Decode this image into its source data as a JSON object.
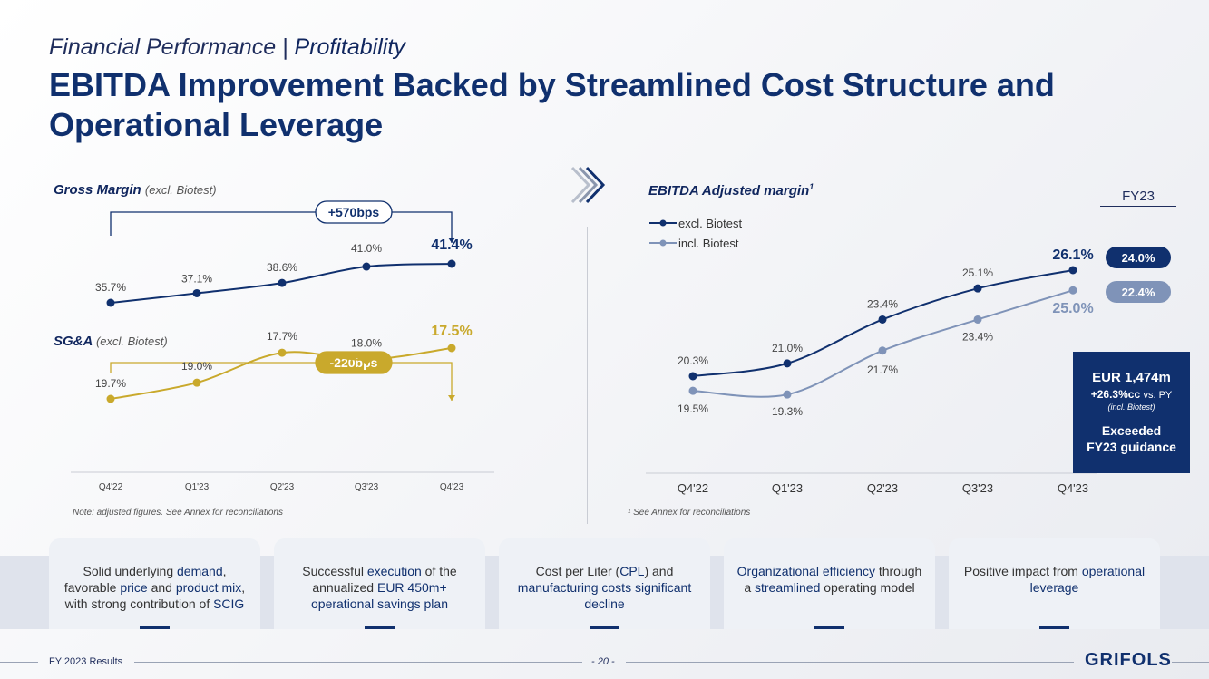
{
  "header": {
    "subtitle_prefix": "Financial Performance |",
    "subtitle_emph": "Profitability",
    "title": "EBITDA Improvement Backed by Streamlined Cost Structure and Operational Leverage"
  },
  "left_panel": {
    "gm_title": "Gross Margin",
    "gm_title_note": "(excl. Biotest)",
    "gm_change": "+570bps",
    "sga_title": "SG&A",
    "sga_title_note": "(excl. Biotest)",
    "sga_change": "-220bps",
    "note": "Note: adjusted figures. See Annex for reconciliations"
  },
  "right_panel": {
    "title": "EBITDA Adjusted margin",
    "title_sup": "1",
    "fy23_label": "FY23",
    "fy23_excl": "24.0%",
    "fy23_incl": "22.4%",
    "note": "¹ See Annex for reconciliations",
    "box": {
      "line1": "EUR 1,474m",
      "line2": "+26.3%cc",
      "line2_suffix": "vs. PY",
      "line3": "(incl. Biotest)",
      "line4a": "Exceeded",
      "line4b": "FY23 guidance"
    }
  },
  "chart_data": [
    {
      "type": "line",
      "title": "Gross Margin",
      "categories": [
        "Q4'22",
        "Q1'23",
        "Q2'23",
        "Q3'23",
        "Q4'23"
      ],
      "series": [
        {
          "name": "",
          "values": [
            35.7,
            37.1,
            38.6,
            41.0,
            41.4
          ],
          "labels": [
            "35.7%",
            "37.1%",
            "38.6%",
            "41.0%",
            "41.4%"
          ]
        }
      ],
      "annotation": "+570bps",
      "color": "#10306e"
    },
    {
      "type": "line",
      "title": "SG&A",
      "categories": [
        "Q4'22",
        "Q1'23",
        "Q2'23",
        "Q3'23",
        "Q4'23"
      ],
      "series": [
        {
          "name": "",
          "values": [
            19.7,
            19.0,
            17.7,
            18.0,
            17.5
          ],
          "labels": [
            "19.7%",
            "19.0%",
            "17.7%",
            "18.0%",
            "17.5%"
          ]
        }
      ],
      "annotation": "-220bps",
      "color": "#c9a92c"
    },
    {
      "type": "line",
      "title": "EBITDA Adjusted margin",
      "categories": [
        "Q4'22",
        "Q1'23",
        "Q2'23",
        "Q3'23",
        "Q4'23"
      ],
      "series": [
        {
          "name": "excl. Biotest",
          "values": [
            20.3,
            21.0,
            23.4,
            25.1,
            26.1
          ],
          "labels": [
            "20.3%",
            "21.0%",
            "23.4%",
            "25.1%",
            "26.1%"
          ],
          "color": "#10306e"
        },
        {
          "name": "incl. Biotest",
          "values": [
            19.5,
            19.3,
            21.7,
            23.4,
            25.0
          ],
          "labels": [
            "19.5%",
            "19.3%",
            "21.7%",
            "23.4%",
            "25.0%"
          ],
          "color": "#7f93b8"
        }
      ],
      "legend": "top-left"
    }
  ],
  "cards": [
    {
      "parts": [
        [
          "Solid underlying ",
          false
        ],
        [
          "demand",
          true
        ],
        [
          ", favorable ",
          false
        ],
        [
          "price",
          true
        ],
        [
          " and ",
          false
        ],
        [
          "product mix",
          true
        ],
        [
          ", with strong contribution of ",
          false
        ],
        [
          "SCIG",
          true
        ]
      ]
    },
    {
      "parts": [
        [
          "Successful ",
          false
        ],
        [
          "execution",
          true
        ],
        [
          " of the annualized ",
          false
        ],
        [
          "EUR 450m+ operational savings plan",
          true
        ]
      ]
    },
    {
      "parts": [
        [
          "Cost per Liter (",
          false
        ],
        [
          "CPL",
          true
        ],
        [
          ") and ",
          false
        ],
        [
          "manufacturing costs significant decline",
          true
        ]
      ]
    },
    {
      "parts": [
        [
          "Organizational efficiency",
          true
        ],
        [
          " through a ",
          false
        ],
        [
          "streamlined",
          true
        ],
        [
          " operating model",
          false
        ]
      ]
    },
    {
      "parts": [
        [
          "Positive impact from ",
          false
        ],
        [
          "operational leverage",
          true
        ]
      ]
    }
  ],
  "footer": {
    "left": "FY 2023 Results",
    "page": "- 20 -",
    "logo": "GRIFOLS"
  },
  "colors": {
    "navy": "#10306e",
    "gold": "#c9a92c",
    "light_blue": "#7f93b8"
  }
}
